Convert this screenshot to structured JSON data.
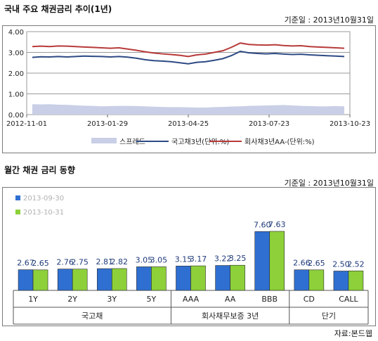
{
  "top": {
    "title": "국내 주요 채권금리 추이(1년)",
    "basis": "기준일 : 2013년10월31일"
  },
  "bottom": {
    "title": "월간 채권 금리 동향",
    "basis": "기준일 : 2013년10월31일",
    "source": "자료:본드웹"
  },
  "colors": {
    "govt": "#2e4a84",
    "corp": "#b83a3a",
    "spread": "#c8cfe6",
    "bar_sep": "#2f6fd1",
    "bar_oct": "#8dd03a",
    "label": "#1f3a7a"
  },
  "chart_data": [
    {
      "type": "line",
      "title": "국내 주요 채권금리 추이(1년)",
      "x_ticks": [
        "2012-11-01",
        "2013-01-29",
        "2013-04-25",
        "2013-07-23",
        "2013-10-23"
      ],
      "ylim": [
        0,
        4
      ],
      "y_ticks": [
        "0.00",
        "1.00",
        "2.00",
        "3.00",
        "4.00"
      ],
      "grid": true,
      "legend_position": "bottom",
      "series": [
        {
          "name": "스프레드",
          "kind": "area",
          "values": [
            0.5,
            0.49,
            0.5,
            0.48,
            0.47,
            0.45,
            0.43,
            0.42,
            0.4,
            0.41,
            0.42,
            0.42,
            0.41,
            0.4,
            0.38,
            0.37,
            0.36,
            0.36,
            0.35,
            0.34,
            0.34,
            0.36,
            0.37,
            0.39,
            0.4,
            0.42,
            0.43,
            0.44,
            0.45,
            0.46,
            0.44,
            0.42,
            0.41,
            0.4,
            0.4,
            0.41,
            0.4
          ]
        },
        {
          "name": "국고채3년(단위:%)",
          "kind": "line",
          "values": [
            2.76,
            2.79,
            2.78,
            2.8,
            2.78,
            2.8,
            2.82,
            2.81,
            2.8,
            2.78,
            2.8,
            2.77,
            2.72,
            2.65,
            2.6,
            2.58,
            2.55,
            2.5,
            2.45,
            2.52,
            2.55,
            2.62,
            2.7,
            2.85,
            3.05,
            2.98,
            2.95,
            2.93,
            2.95,
            2.92,
            2.9,
            2.91,
            2.88,
            2.86,
            2.84,
            2.82,
            2.8
          ]
        },
        {
          "name": "회사채3년AA-(단위:%)",
          "kind": "line",
          "values": [
            3.28,
            3.3,
            3.28,
            3.31,
            3.3,
            3.28,
            3.26,
            3.24,
            3.22,
            3.2,
            3.22,
            3.16,
            3.1,
            3.03,
            2.97,
            2.93,
            2.9,
            2.86,
            2.8,
            2.88,
            2.92,
            3.0,
            3.08,
            3.25,
            3.45,
            3.38,
            3.36,
            3.35,
            3.37,
            3.33,
            3.31,
            3.32,
            3.28,
            3.26,
            3.24,
            3.22,
            3.2
          ]
        }
      ]
    },
    {
      "type": "bar",
      "title": "월간 채권 금리 동향",
      "categories": [
        "1Y",
        "2Y",
        "3Y",
        "5Y",
        "AAA",
        "AA",
        "BBB",
        "CD",
        "CALL"
      ],
      "groups": [
        {
          "label": "국고채",
          "span": 4
        },
        {
          "label": "회사채무보증 3년",
          "span": 3
        },
        {
          "label": "단기",
          "span": 2
        }
      ],
      "series": [
        {
          "name": "2013-09-30",
          "values": [
            2.67,
            2.76,
            2.81,
            3.05,
            3.15,
            3.22,
            7.6,
            2.66,
            2.5
          ],
          "labels": [
            "2.67",
            "2.76",
            "2.81",
            "3.05",
            "3.15",
            "3.22",
            "7.60",
            "2.66",
            "2.50"
          ]
        },
        {
          "name": "2013-10-31",
          "values": [
            2.65,
            2.75,
            2.82,
            3.05,
            3.17,
            3.25,
            7.63,
            2.65,
            2.52
          ],
          "labels": [
            "2.65",
            "2.75",
            "2.82",
            "3.05",
            "3.17",
            "3.25",
            "7.63",
            "2.65",
            "2.52"
          ]
        }
      ],
      "legend_position": "top-left",
      "grid": false
    }
  ]
}
